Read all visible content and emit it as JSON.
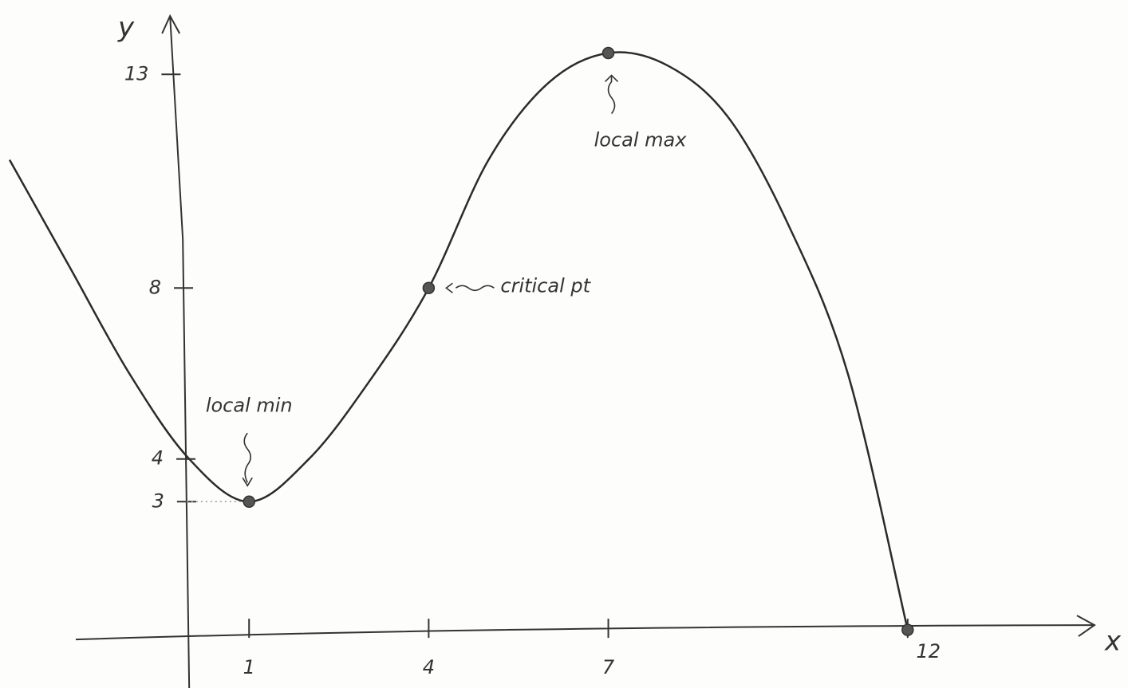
{
  "chart_data": {
    "type": "line",
    "x_label": "x",
    "y_label": "y",
    "x": [
      -3,
      -2,
      -1,
      0,
      1,
      2,
      3,
      4,
      5,
      6,
      7,
      8,
      9,
      10,
      11,
      12
    ],
    "values": [
      11,
      8.5,
      6,
      4,
      3,
      4,
      5.8,
      8,
      11,
      12.8,
      13.5,
      13.2,
      12,
      9.5,
      6,
      0
    ],
    "color": "#2b2b2b",
    "markers": {
      "x": [
        1,
        4,
        7,
        12
      ],
      "values": [
        3,
        8,
        13.5,
        0
      ],
      "color": "#555555"
    },
    "annotations": [
      "local min",
      "critical pt",
      "local max"
    ],
    "xlim": [
      -3.16,
      15.68
    ],
    "ylim": [
      -1.36,
      14.74
    ],
    "xticks": [
      1,
      4,
      7,
      12
    ],
    "yticks": [
      3,
      4,
      8,
      13
    ]
  }
}
